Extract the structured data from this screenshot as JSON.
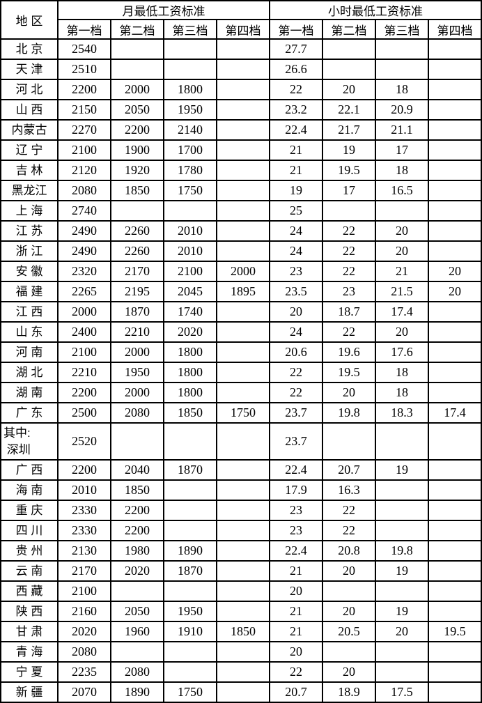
{
  "chart_data": {
    "type": "table",
    "region_header": "地 区",
    "column_groups": [
      {
        "label": "月最低工资标准",
        "tiers": [
          "第一档",
          "第二档",
          "第三档",
          "第四档"
        ]
      },
      {
        "label": "小时最低工资标准",
        "tiers": [
          "第一档",
          "第二档",
          "第三档",
          "第四档"
        ]
      }
    ],
    "rows": [
      {
        "region": "北 京",
        "month": [
          "2540",
          "",
          "",
          ""
        ],
        "hour": [
          "27.7",
          "",
          "",
          ""
        ]
      },
      {
        "region": "天 津",
        "month": [
          "2510",
          "",
          "",
          ""
        ],
        "hour": [
          "26.6",
          "",
          "",
          ""
        ]
      },
      {
        "region": "河 北",
        "month": [
          "2200",
          "2000",
          "1800",
          ""
        ],
        "hour": [
          "22",
          "20",
          "18",
          ""
        ]
      },
      {
        "region": "山 西",
        "month": [
          "2150",
          "2050",
          "1950",
          ""
        ],
        "hour": [
          "23.2",
          "22.1",
          "20.9",
          ""
        ]
      },
      {
        "region": "内蒙古",
        "month": [
          "2270",
          "2200",
          "2140",
          ""
        ],
        "hour": [
          "22.4",
          "21.7",
          "21.1",
          ""
        ]
      },
      {
        "region": "辽 宁",
        "month": [
          "2100",
          "1900",
          "1700",
          ""
        ],
        "hour": [
          "21",
          "19",
          "17",
          ""
        ]
      },
      {
        "region": "吉 林",
        "month": [
          "2120",
          "1920",
          "1780",
          ""
        ],
        "hour": [
          "21",
          "19.5",
          "18",
          ""
        ]
      },
      {
        "region": "黑龙江",
        "month": [
          "2080",
          "1850",
          "1750",
          ""
        ],
        "hour": [
          "19",
          "17",
          "16.5",
          ""
        ]
      },
      {
        "region": "上 海",
        "month": [
          "2740",
          "",
          "",
          ""
        ],
        "hour": [
          "25",
          "",
          "",
          ""
        ]
      },
      {
        "region": "江 苏",
        "month": [
          "2490",
          "2260",
          "2010",
          ""
        ],
        "hour": [
          "24",
          "22",
          "20",
          ""
        ]
      },
      {
        "region": "浙 江",
        "month": [
          "2490",
          "2260",
          "2010",
          ""
        ],
        "hour": [
          "24",
          "22",
          "20",
          ""
        ]
      },
      {
        "region": "安 徽",
        "month": [
          "2320",
          "2170",
          "2100",
          "2000"
        ],
        "hour": [
          "23",
          "22",
          "21",
          "20"
        ]
      },
      {
        "region": "福 建",
        "month": [
          "2265",
          "2195",
          "2045",
          "1895"
        ],
        "hour": [
          "23.5",
          "23",
          "21.5",
          "20"
        ]
      },
      {
        "region": "江 西",
        "month": [
          "2000",
          "1870",
          "1740",
          ""
        ],
        "hour": [
          "20",
          "18.7",
          "17.4",
          ""
        ]
      },
      {
        "region": "山 东",
        "month": [
          "2400",
          "2210",
          "2020",
          ""
        ],
        "hour": [
          "24",
          "22",
          "20",
          ""
        ]
      },
      {
        "region": "河 南",
        "month": [
          "2100",
          "2000",
          "1800",
          ""
        ],
        "hour": [
          "20.6",
          "19.6",
          "17.6",
          ""
        ]
      },
      {
        "region": "湖 北",
        "month": [
          "2210",
          "1950",
          "1800",
          ""
        ],
        "hour": [
          "22",
          "19.5",
          "18",
          ""
        ]
      },
      {
        "region": "湖 南",
        "month": [
          "2200",
          "2000",
          "1800",
          ""
        ],
        "hour": [
          "22",
          "20",
          "18",
          ""
        ]
      },
      {
        "region": "广 东",
        "month": [
          "2500",
          "2080",
          "1850",
          "1750"
        ],
        "hour": [
          "23.7",
          "19.8",
          "18.3",
          "17.4"
        ]
      },
      {
        "region": "其中:\n 深圳",
        "month": [
          "2520",
          "",
          "",
          ""
        ],
        "hour": [
          "23.7",
          "",
          "",
          ""
        ]
      },
      {
        "region": "广 西",
        "month": [
          "2200",
          "2040",
          "1870",
          ""
        ],
        "hour": [
          "22.4",
          "20.7",
          "19",
          ""
        ]
      },
      {
        "region": "海 南",
        "month": [
          "2010",
          "1850",
          "",
          ""
        ],
        "hour": [
          "17.9",
          "16.3",
          "",
          ""
        ]
      },
      {
        "region": "重 庆",
        "month": [
          "2330",
          "2200",
          "",
          ""
        ],
        "hour": [
          "23",
          "22",
          "",
          ""
        ]
      },
      {
        "region": "四 川",
        "month": [
          "2330",
          "2200",
          "",
          ""
        ],
        "hour": [
          "23",
          "22",
          "",
          ""
        ]
      },
      {
        "region": "贵 州",
        "month": [
          "2130",
          "1980",
          "1890",
          ""
        ],
        "hour": [
          "22.4",
          "20.8",
          "19.8",
          ""
        ]
      },
      {
        "region": "云 南",
        "month": [
          "2170",
          "2020",
          "1870",
          ""
        ],
        "hour": [
          "21",
          "20",
          "19",
          ""
        ]
      },
      {
        "region": "西 藏",
        "month": [
          "2100",
          "",
          "",
          ""
        ],
        "hour": [
          "20",
          "",
          "",
          ""
        ]
      },
      {
        "region": "陕 西",
        "month": [
          "2160",
          "2050",
          "1950",
          ""
        ],
        "hour": [
          "21",
          "20",
          "19",
          ""
        ]
      },
      {
        "region": "甘 肃",
        "month": [
          "2020",
          "1960",
          "1910",
          "1850"
        ],
        "hour": [
          "21",
          "20.5",
          "20",
          "19.5"
        ]
      },
      {
        "region": "青 海",
        "month": [
          "2080",
          "",
          "",
          ""
        ],
        "hour": [
          "20",
          "",
          "",
          ""
        ]
      },
      {
        "region": "宁 夏",
        "month": [
          "2235",
          "2080",
          "",
          ""
        ],
        "hour": [
          "22",
          "20",
          "",
          ""
        ]
      },
      {
        "region": "新 疆",
        "month": [
          "2070",
          "1890",
          "1750",
          ""
        ],
        "hour": [
          "20.7",
          "18.9",
          "17.5",
          ""
        ]
      }
    ]
  }
}
